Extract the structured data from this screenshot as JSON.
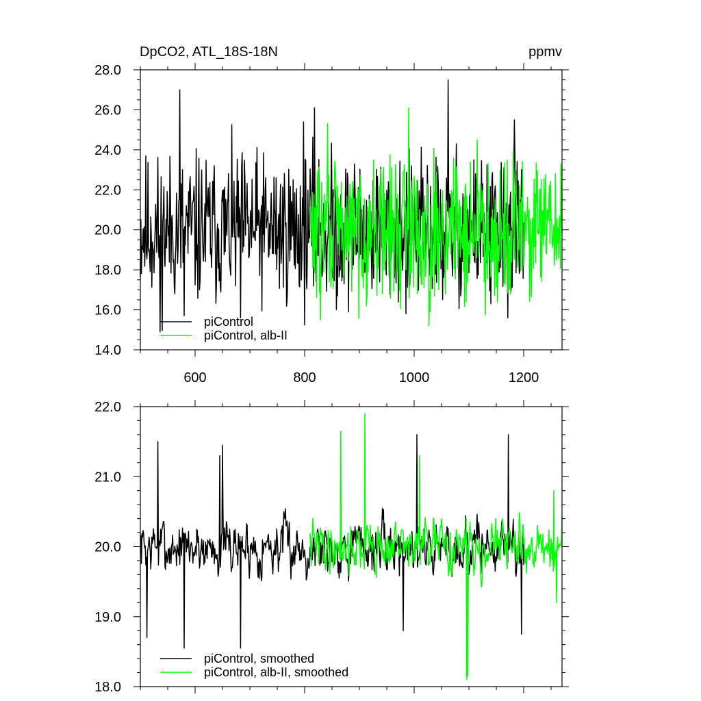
{
  "chart_data": [
    {
      "type": "line",
      "title_left": "DpCO2, ATL_18S-18N",
      "title_right": "ppmv",
      "xlim": [
        500,
        1270
      ],
      "ylim": [
        14.0,
        28.0
      ],
      "x_ticks": [
        600,
        800,
        1000,
        1200
      ],
      "x_tick_labels": [
        "600",
        "800",
        "1000",
        "1200"
      ],
      "y_ticks": [
        14.0,
        16.0,
        18.0,
        20.0,
        22.0,
        24.0,
        26.0,
        28.0
      ],
      "y_tick_labels": [
        "14.0",
        "16.0",
        "18.0",
        "20.0",
        "22.0",
        "24.0",
        "26.0",
        "28.0"
      ],
      "legend_position": "bottom-left",
      "series": [
        {
          "name": "piControl",
          "color": "#000000",
          "x_start": 500,
          "x_end": 1200,
          "mean": 20.0,
          "amplitude": 2.3,
          "seed": 11,
          "peaks": [
            [
              572,
              27.0
            ],
            [
              536,
              24.4
            ],
            [
              798,
              25.4
            ],
            [
              818,
              26.1
            ],
            [
              1062,
              27.5
            ],
            [
              1183,
              25.5
            ]
          ],
          "troughs": [
            [
              536,
              14.9
            ],
            [
              580,
              15.7
            ],
            [
              683,
              15.6
            ],
            [
              860,
              16.7
            ],
            [
              985,
              15.8
            ],
            [
              1140,
              16.3
            ]
          ]
        },
        {
          "name": "piControl, alb-II",
          "color": "#00ff00",
          "x_start": 810,
          "x_end": 1270,
          "mean": 20.0,
          "amplitude": 2.1,
          "seed": 29,
          "peaks": [
            [
              842,
              25.3
            ],
            [
              990,
              26.1
            ],
            [
              1115,
              24.5
            ],
            [
              1268,
              23.3
            ]
          ],
          "troughs": [
            [
              829,
              15.5
            ],
            [
              1027,
              15.2
            ],
            [
              1095,
              16.4
            ]
          ]
        }
      ]
    },
    {
      "type": "line",
      "xlim": [
        500,
        1270
      ],
      "ylim": [
        18.0,
        22.0
      ],
      "x_ticks": [
        600,
        800,
        1000,
        1200
      ],
      "y_ticks": [
        18.0,
        19.0,
        20.0,
        21.0,
        22.0
      ],
      "y_tick_labels": [
        "18.0",
        "19.0",
        "20.0",
        "21.0",
        "22.0"
      ],
      "legend_position": "bottom-left",
      "series": [
        {
          "name": "piControl, smoothed",
          "color": "#000000",
          "x_start": 500,
          "x_end": 1200,
          "mean": 20.0,
          "amplitude": 0.45,
          "seed": 7,
          "peaks": [
            [
              532,
              21.5
            ],
            [
              645,
              21.3
            ],
            [
              650,
              21.45
            ],
            [
              1005,
              21.6
            ],
            [
              1172,
              21.6
            ]
          ],
          "troughs": [
            [
              512,
              18.7
            ],
            [
              580,
              18.55
            ],
            [
              683,
              18.55
            ],
            [
              980,
              18.8
            ],
            [
              1196,
              18.75
            ]
          ]
        },
        {
          "name": "piControl, alb-II, smoothed",
          "color": "#00ff00",
          "x_start": 810,
          "x_end": 1270,
          "mean": 20.0,
          "amplitude": 0.42,
          "seed": 41,
          "peaks": [
            [
              866,
              21.65
            ],
            [
              910,
              21.9
            ],
            [
              1010,
              21.3
            ],
            [
              1255,
              20.8
            ]
          ],
          "troughs": [
            [
              1096,
              18.1
            ],
            [
              1098,
              18.15
            ],
            [
              1260,
              19.2
            ]
          ]
        }
      ]
    }
  ]
}
